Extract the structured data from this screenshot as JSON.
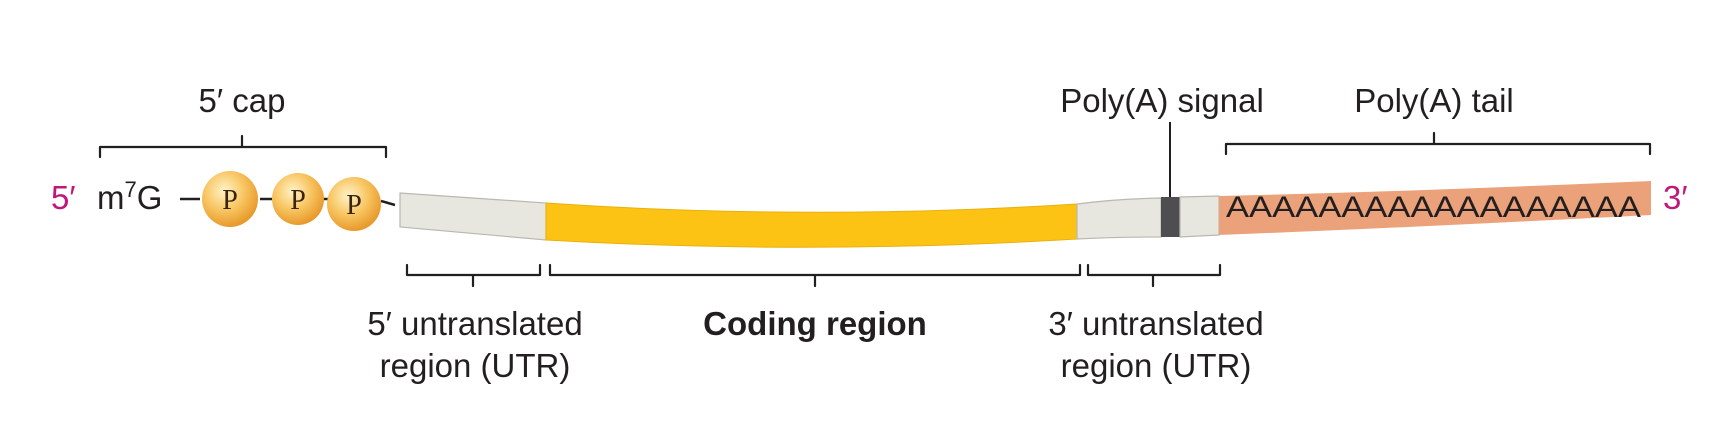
{
  "labels": {
    "five_prime_end": "5′",
    "three_prime_end": "3′",
    "cap_label": "5′ cap",
    "m7g_base": "m",
    "m7g_superscript": "7",
    "m7g_suffix": "G",
    "phosphate": "P",
    "polyA_signal": "Poly(A) signal",
    "polyA_tail": "Poly(A) tail",
    "polyA_sequence": "AAAAAAAAAAAAAAAAAA",
    "utr5_line1": "5′ untranslated",
    "utr5_line2": "region (UTR)",
    "coding_region": "Coding region",
    "utr3_line1": "3′ untranslated",
    "utr3_line2": "region (UTR)"
  },
  "colors": {
    "utr": "#e7e7e0",
    "coding": "#fdc314",
    "polyA_signal": "#4e4e50",
    "polyA_tail": "#eba27a",
    "phosphate_fill": "#f8c561",
    "end_labels": "#c0177a",
    "outline": "#b9b9b0"
  }
}
